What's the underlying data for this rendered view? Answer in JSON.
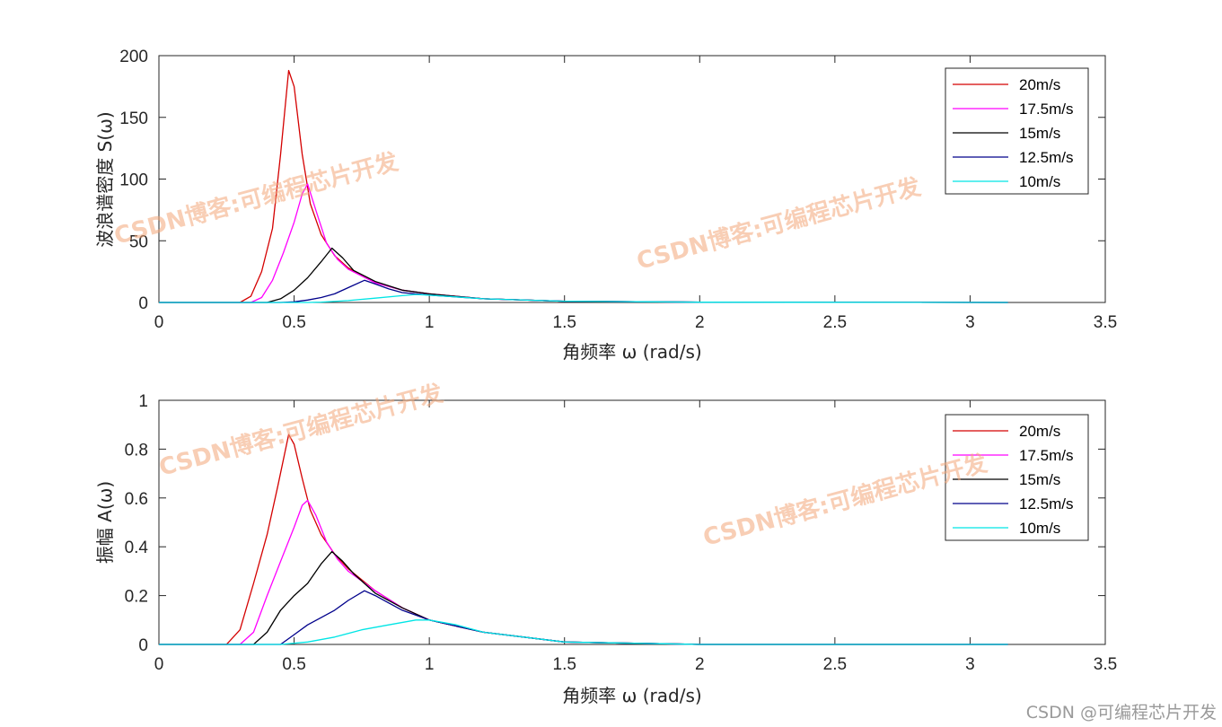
{
  "watermark": "CSDN博客:可编程芯片开发",
  "credit": "CSDN @可编程芯片开发",
  "chart_data": [
    {
      "type": "line",
      "xlabel": "角频率 ω (rad/s)",
      "ylabel": "波浪谱密度 S(ω)",
      "xlim": [
        0,
        3.5
      ],
      "ylim": [
        0,
        200
      ],
      "xticks": [
        0,
        0.5,
        1,
        1.5,
        2,
        2.5,
        3,
        3.5
      ],
      "xtick_labels": [
        "0",
        "0.5",
        "1",
        "1.5",
        "2",
        "2.5",
        "3",
        "3.5"
      ],
      "yticks": [
        0,
        50,
        100,
        150,
        200
      ],
      "ytick_labels": [
        "0",
        "50",
        "100",
        "150",
        "200"
      ],
      "legend_position": "top-right",
      "series": [
        {
          "name": "20m/s",
          "color": "#d40000",
          "x": [
            0,
            0.3,
            0.34,
            0.38,
            0.42,
            0.45,
            0.48,
            0.5,
            0.53,
            0.56,
            0.6,
            0.65,
            0.7,
            0.8,
            0.9,
            1.0,
            1.2,
            1.5,
            2.0,
            3.14
          ],
          "y": [
            0,
            0,
            5,
            25,
            60,
            120,
            188,
            175,
            120,
            80,
            55,
            38,
            28,
            16,
            10,
            7,
            3,
            1,
            0.2,
            0
          ]
        },
        {
          "name": "17.5m/s",
          "color": "#ff00ff",
          "x": [
            0,
            0.34,
            0.38,
            0.42,
            0.46,
            0.5,
            0.53,
            0.55,
            0.58,
            0.62,
            0.66,
            0.7,
            0.8,
            0.9,
            1.0,
            1.2,
            1.5,
            2.0,
            3.14
          ],
          "y": [
            0,
            0,
            4,
            18,
            40,
            65,
            88,
            96,
            75,
            48,
            35,
            27,
            16,
            10,
            7,
            3,
            1,
            0.2,
            0
          ]
        },
        {
          "name": "15m/s",
          "color": "#000000",
          "x": [
            0,
            0.4,
            0.45,
            0.5,
            0.55,
            0.6,
            0.64,
            0.68,
            0.72,
            0.8,
            0.9,
            1.0,
            1.2,
            1.5,
            2.0,
            3.14
          ],
          "y": [
            0,
            0,
            3,
            10,
            20,
            33,
            44,
            36,
            26,
            17,
            10,
            7,
            3,
            1,
            0.2,
            0
          ]
        },
        {
          "name": "12.5m/s",
          "color": "#00008b",
          "x": [
            0,
            0.45,
            0.5,
            0.55,
            0.6,
            0.65,
            0.7,
            0.76,
            0.8,
            0.85,
            0.9,
            1.0,
            1.2,
            1.5,
            2.0,
            3.14
          ],
          "y": [
            0,
            0,
            0.5,
            2,
            4,
            7,
            12,
            18,
            15,
            11,
            8,
            6,
            3,
            1,
            0.2,
            0
          ]
        },
        {
          "name": "10m/s",
          "color": "#00e5e5",
          "x": [
            0,
            0.55,
            0.6,
            0.7,
            0.8,
            0.9,
            0.95,
            1.0,
            1.2,
            1.5,
            2.0,
            3.14
          ],
          "y": [
            0,
            0,
            0.3,
            1.5,
            3.5,
            5.5,
            6.5,
            6,
            3,
            1,
            0.2,
            0
          ]
        }
      ]
    },
    {
      "type": "line",
      "xlabel": "角频率 ω (rad/s)",
      "ylabel": "振幅 A(ω)",
      "xlim": [
        0,
        3.5
      ],
      "ylim": [
        0,
        1
      ],
      "xticks": [
        0,
        0.5,
        1,
        1.5,
        2,
        2.5,
        3,
        3.5
      ],
      "xtick_labels": [
        "0",
        "0.5",
        "1",
        "1.5",
        "2",
        "2.5",
        "3",
        "3.5"
      ],
      "yticks": [
        0,
        0.2,
        0.4,
        0.6,
        0.8,
        1
      ],
      "ytick_labels": [
        "0",
        "0.2",
        "0.4",
        "0.6",
        "0.8",
        "1"
      ],
      "legend_position": "top-right",
      "series": [
        {
          "name": "20m/s",
          "color": "#d40000",
          "x": [
            0,
            0.25,
            0.3,
            0.35,
            0.4,
            0.44,
            0.48,
            0.5,
            0.53,
            0.56,
            0.6,
            0.65,
            0.7,
            0.8,
            0.9,
            1.0,
            1.2,
            1.5,
            2.0,
            3.14
          ],
          "y": [
            0,
            0,
            0.06,
            0.25,
            0.45,
            0.65,
            0.86,
            0.82,
            0.68,
            0.55,
            0.45,
            0.37,
            0.31,
            0.22,
            0.15,
            0.1,
            0.05,
            0.01,
            0,
            0
          ]
        },
        {
          "name": "17.5m/s",
          "color": "#ff00ff",
          "x": [
            0,
            0.3,
            0.35,
            0.4,
            0.45,
            0.5,
            0.53,
            0.55,
            0.58,
            0.62,
            0.66,
            0.7,
            0.8,
            0.9,
            1.0,
            1.2,
            1.5,
            2.0,
            3.14
          ],
          "y": [
            0,
            0,
            0.05,
            0.2,
            0.34,
            0.48,
            0.57,
            0.59,
            0.53,
            0.42,
            0.35,
            0.3,
            0.22,
            0.15,
            0.1,
            0.05,
            0.01,
            0,
            0
          ]
        },
        {
          "name": "15m/s",
          "color": "#000000",
          "x": [
            0,
            0.35,
            0.4,
            0.45,
            0.5,
            0.55,
            0.6,
            0.64,
            0.68,
            0.72,
            0.8,
            0.9,
            1.0,
            1.2,
            1.5,
            2.0,
            3.14
          ],
          "y": [
            0,
            0,
            0.05,
            0.14,
            0.2,
            0.25,
            0.33,
            0.38,
            0.34,
            0.29,
            0.21,
            0.15,
            0.1,
            0.05,
            0.01,
            0,
            0
          ]
        },
        {
          "name": "12.5m/s",
          "color": "#00008b",
          "x": [
            0,
            0.45,
            0.5,
            0.55,
            0.6,
            0.65,
            0.7,
            0.76,
            0.8,
            0.85,
            0.9,
            1.0,
            1.2,
            1.5,
            2.0,
            3.14
          ],
          "y": [
            0,
            0,
            0.04,
            0.08,
            0.11,
            0.14,
            0.18,
            0.22,
            0.2,
            0.17,
            0.14,
            0.1,
            0.05,
            0.01,
            0,
            0
          ]
        },
        {
          "name": "10m/s",
          "color": "#00e5e5",
          "x": [
            0,
            0.45,
            0.55,
            0.65,
            0.75,
            0.85,
            0.95,
            1.0,
            1.1,
            1.2,
            1.5,
            2.0,
            3.14
          ],
          "y": [
            0,
            0,
            0.01,
            0.03,
            0.06,
            0.08,
            0.1,
            0.1,
            0.08,
            0.05,
            0.01,
            0,
            0
          ]
        }
      ]
    }
  ]
}
